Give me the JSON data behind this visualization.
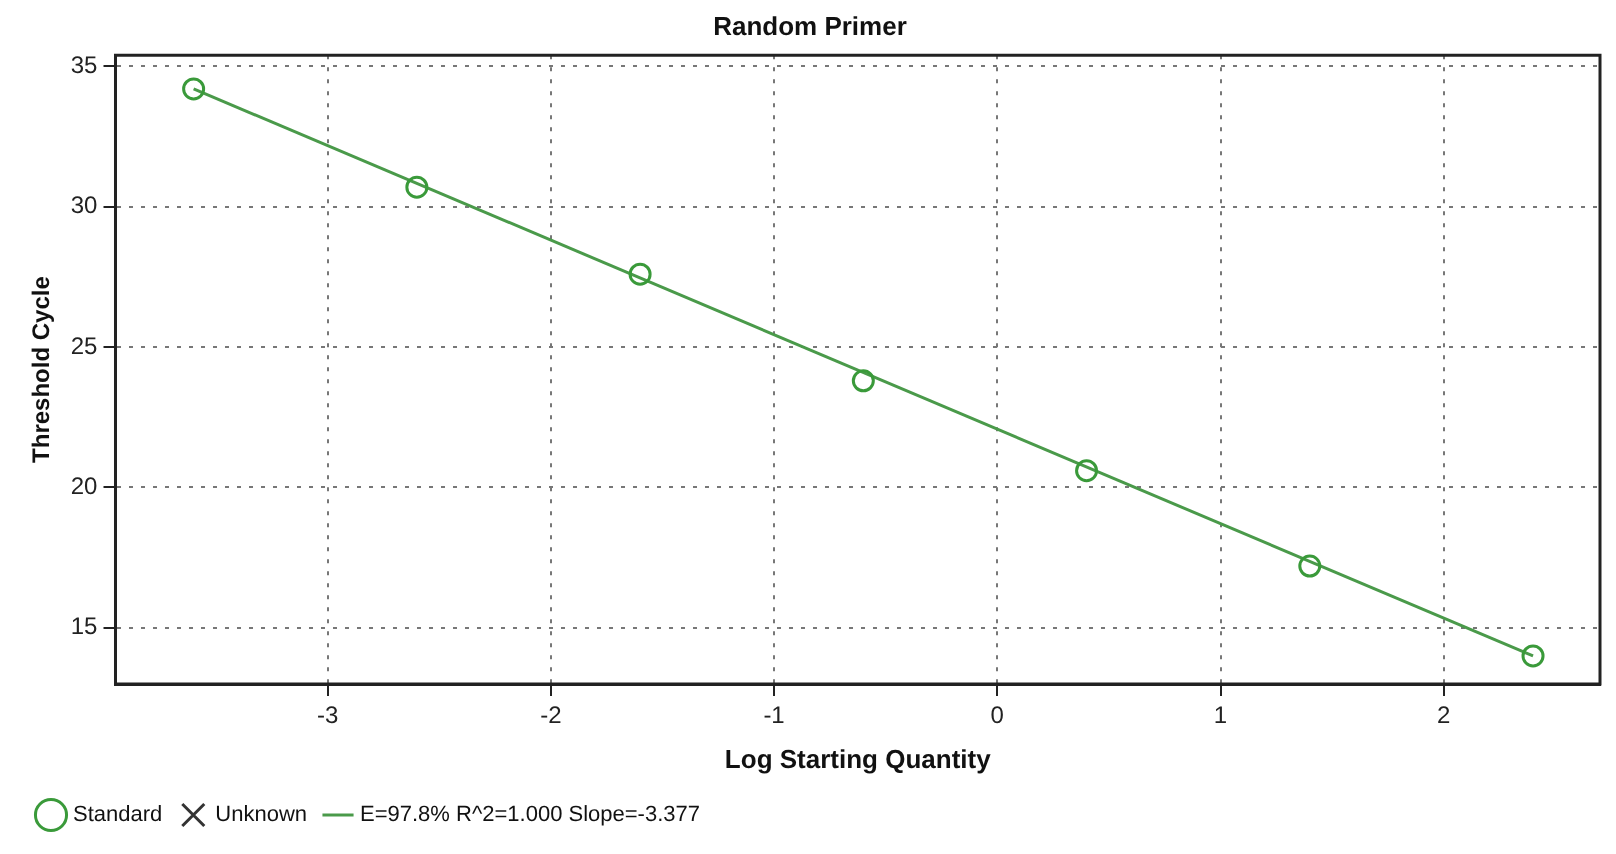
{
  "chart_data": {
    "type": "scatter",
    "title": "Random Primer",
    "xlabel": "Log Starting Quantity",
    "ylabel": "Threshold Cycle",
    "xlim": [
      -3.95,
      2.7
    ],
    "xticks": [
      -3,
      -2,
      -1,
      0,
      1,
      2
    ],
    "ylim": [
      13,
      35.4
    ],
    "yticks": [
      15,
      20,
      25,
      30,
      35
    ],
    "grid": true,
    "legend": "bottom",
    "marker": "circle",
    "series": [
      {
        "name": "Standard",
        "color": "#3a9a3a",
        "x": [
          -3.6,
          -2.6,
          -1.6,
          -0.6,
          0.4,
          1.4,
          2.4
        ],
        "values": [
          34.2,
          30.7,
          27.6,
          23.8,
          20.6,
          17.2,
          14.0
        ]
      },
      {
        "name": "Unknown",
        "type": "scatter",
        "marker": "cross",
        "color": "#333333"
      },
      {
        "name": "E=97.8% R^2=1.000 Slope=-3.377",
        "type": "line",
        "marker": "none",
        "color": "#4a9a4a",
        "x": [
          -3.6,
          2.4
        ],
        "values": [
          34.2,
          14.0
        ]
      }
    ]
  }
}
